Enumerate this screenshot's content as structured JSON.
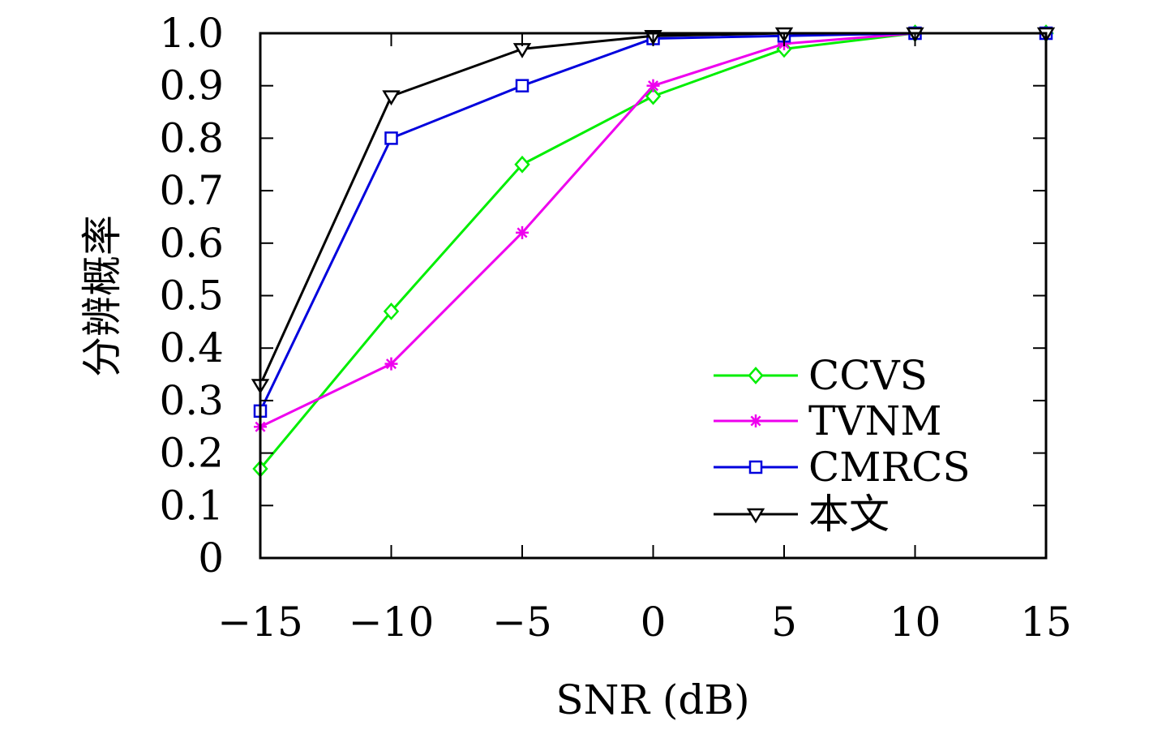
{
  "chart_data": {
    "type": "line",
    "title": "",
    "xlabel": "SNR (dB)",
    "ylabel": "分辨概率",
    "x": [
      -15,
      -10,
      -5,
      0,
      5,
      10,
      15
    ],
    "x_tick_labels": [
      "−15",
      "−10",
      "−5",
      "0",
      "5",
      "10",
      "15"
    ],
    "y_tick_values": [
      0,
      0.1,
      0.2,
      0.3,
      0.4,
      0.5,
      0.6,
      0.7,
      0.8,
      0.9,
      1.0
    ],
    "y_tick_labels": [
      "0",
      "0.1",
      "0.2",
      "0.3",
      "0.4",
      "0.5",
      "0.6",
      "0.7",
      "0.8",
      "0.9",
      "1.0"
    ],
    "xlim": [
      -15,
      15
    ],
    "ylim": [
      0,
      1
    ],
    "grid": false,
    "legend_position": "bottom-right",
    "series": [
      {
        "name": "CCVS",
        "color": "#00ee00",
        "marker": "diamond",
        "values": [
          0.17,
          0.47,
          0.75,
          0.88,
          0.97,
          1.0,
          1.0
        ]
      },
      {
        "name": "TVNM",
        "color": "#ee00ee",
        "marker": "asterisk",
        "values": [
          0.25,
          0.37,
          0.62,
          0.9,
          0.98,
          1.0,
          1.0
        ]
      },
      {
        "name": "CMRCS",
        "color": "#0000dd",
        "marker": "square",
        "values": [
          0.28,
          0.8,
          0.9,
          0.99,
          0.995,
          1.0,
          1.0
        ]
      },
      {
        "name": "本文",
        "color": "#000000",
        "marker": "triangle-down",
        "values": [
          0.33,
          0.88,
          0.97,
          0.995,
          1.0,
          1.0,
          1.0
        ]
      }
    ]
  }
}
